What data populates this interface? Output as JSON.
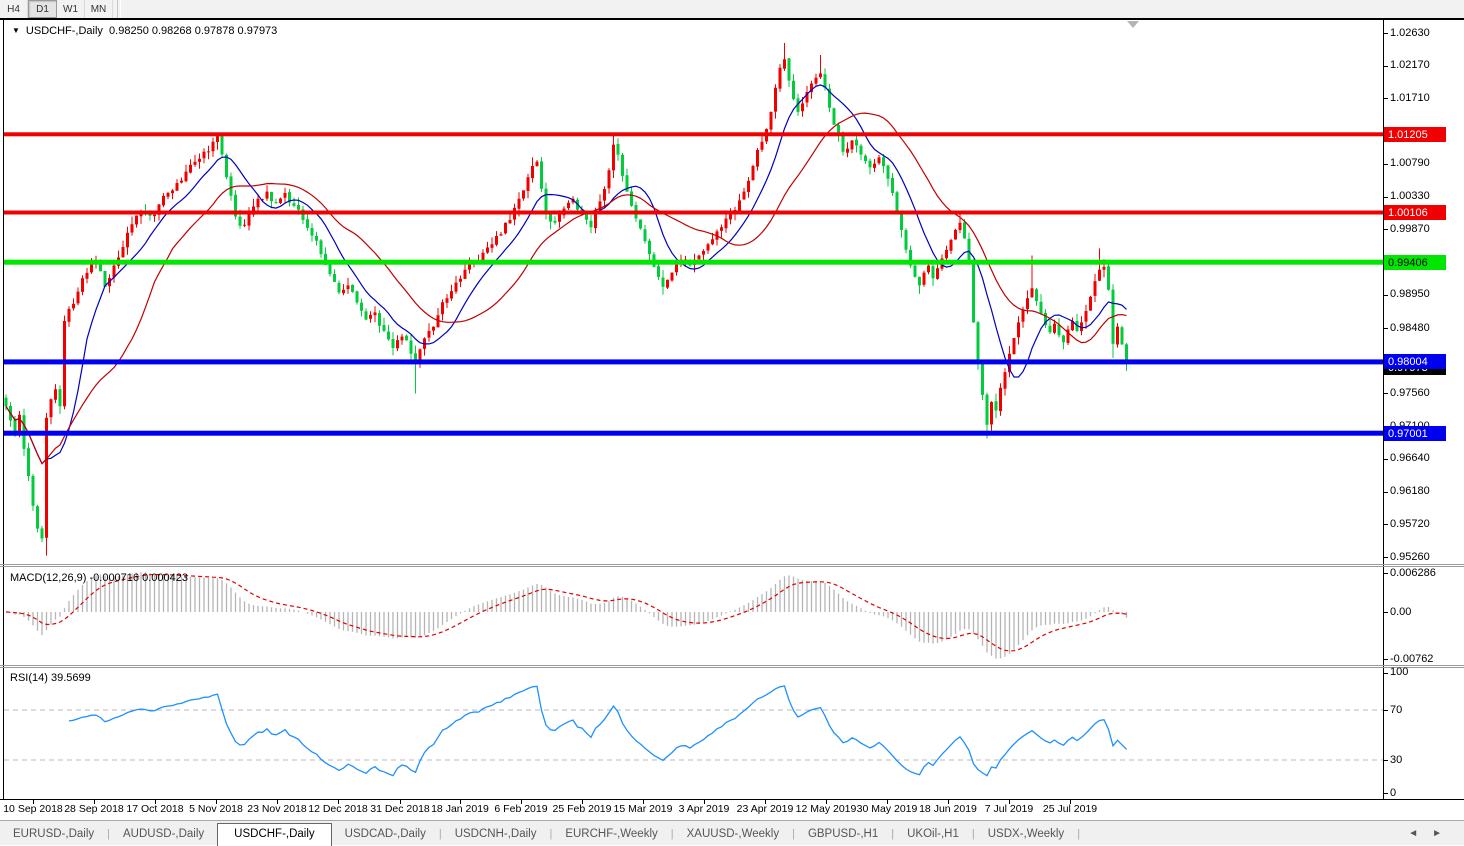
{
  "toolbar": {
    "timeframes": [
      "H4",
      "D1",
      "W1",
      "MN"
    ],
    "active": "D1"
  },
  "title": {
    "collapse_icon": "▼",
    "symbol_label": "USDCHF-,Daily",
    "open": "0.98250",
    "high": "0.98268",
    "low": "0.97878",
    "close": "0.97973"
  },
  "price_axis": {
    "tick_labels": [
      {
        "text": "1.02630",
        "price": 1.0263
      },
      {
        "text": "1.02170",
        "price": 1.0217
      },
      {
        "text": "1.01710",
        "price": 1.0171
      },
      {
        "text": "1.00790",
        "price": 1.0079
      },
      {
        "text": "1.00330",
        "price": 1.0033
      },
      {
        "text": "0.99870",
        "price": 0.9987
      },
      {
        "text": "0.98950",
        "price": 0.9895
      },
      {
        "text": "0.98480",
        "price": 0.9848
      },
      {
        "text": "0.97560",
        "price": 0.9756
      },
      {
        "text": "0.97100",
        "price": 0.971
      },
      {
        "text": "0.96640",
        "price": 0.9664
      },
      {
        "text": "0.96180",
        "price": 0.9618
      },
      {
        "text": "0.95720",
        "price": 0.9572
      },
      {
        "text": "0.95260",
        "price": 0.9526
      }
    ],
    "sr_labels": [
      {
        "text": "1.01205",
        "price": 1.01205,
        "bg": "#f00000",
        "fg": "#ffffff"
      },
      {
        "text": "1.00106",
        "price": 1.00106,
        "bg": "#f00000",
        "fg": "#ffffff"
      },
      {
        "text": "0.99406",
        "price": 0.99406,
        "bg": "#00e600",
        "fg": "#000000"
      },
      {
        "text": "0.98004",
        "price": 0.98004,
        "bg": "#0000f0",
        "fg": "#ffffff"
      },
      {
        "text": "0.97001",
        "price": 0.97001,
        "bg": "#0000f0",
        "fg": "#ffffff"
      }
    ],
    "current_price": {
      "text": "0.97973",
      "price": 0.97973,
      "bg": "#000000",
      "fg": "#ffffff"
    }
  },
  "macd_panel": {
    "label": "MACD(12,26,9)",
    "value": "-0.000716",
    "signal_value": "0.000423",
    "axis": [
      {
        "text": "0.006286",
        "value": 0.006286
      },
      {
        "text": "0.00",
        "value": 0
      },
      {
        "text": "-0.00762",
        "value": -0.00762
      }
    ]
  },
  "rsi_panel": {
    "label": "RSI(14)",
    "value": "39.5699",
    "axis": [
      {
        "text": "100",
        "value": 100
      },
      {
        "text": "70",
        "value": 70
      },
      {
        "text": "30",
        "value": 30
      },
      {
        "text": "0",
        "value": 0
      }
    ],
    "levels": [
      70,
      30
    ]
  },
  "date_axis": {
    "labels": [
      {
        "text": "10 Sep 2018",
        "i": 6
      },
      {
        "text": "28 Sep 2018",
        "i": 19.6
      },
      {
        "text": "17 Oct 2018",
        "i": 33.1
      },
      {
        "text": "5 Nov 2018",
        "i": 46.7
      },
      {
        "text": "23 Nov 2018",
        "i": 60.2
      },
      {
        "text": "12 Dec 2018",
        "i": 73.8
      },
      {
        "text": "31 Dec 2018",
        "i": 87.6
      },
      {
        "text": "18 Jan 2019",
        "i": 100.9
      },
      {
        "text": "6 Feb 2019",
        "i": 114.4
      },
      {
        "text": "25 Feb 2019",
        "i": 128
      },
      {
        "text": "15 Mar 2019",
        "i": 141.6
      },
      {
        "text": "3 Apr 2019",
        "i": 155.1
      },
      {
        "text": "23 Apr 2019",
        "i": 168.7
      },
      {
        "text": "12 May 2019",
        "i": 182.2
      },
      {
        "text": "30 May 2019",
        "i": 195.8
      },
      {
        "text": "18 Jun 2019",
        "i": 209.3
      },
      {
        "text": "7 Jul 2019",
        "i": 222.9
      },
      {
        "text": "25 Jul 2019",
        "i": 236.4
      }
    ]
  },
  "tabs": {
    "items": [
      "EURUSD-,Daily",
      "AUDUSD-,Daily",
      "USDCHF-,Daily",
      "USDCAD-,Daily",
      "USDCNH-,Daily",
      "EURCHF-,Weekly",
      "XAUUSD-,Weekly",
      "GBPUSD-,H1",
      "UKOil-,H1",
      "USDX-,Weekly"
    ],
    "active": "USDCHF-,Daily",
    "nav_prev": "◄",
    "nav_next": "►"
  },
  "chart_data": {
    "type": "candlestick",
    "symbol": "USDCHF",
    "timeframe": "Daily",
    "title": "USDCHF-,Daily",
    "last_ohlc": {
      "open": 0.9825,
      "high": 0.98268,
      "low": 0.97878,
      "close": 0.97973
    },
    "num_candles": 250,
    "y_axis": {
      "min": 0.9526,
      "max": 1.0263,
      "tick_step": 0.0046
    },
    "grid": false,
    "close_anchors": [
      [
        0,
        0.9738
      ],
      [
        1,
        0.9718
      ],
      [
        2,
        0.97
      ],
      [
        3,
        0.9726
      ],
      [
        4,
        0.9678
      ],
      [
        5,
        0.964
      ],
      [
        6,
        0.9598
      ],
      [
        7,
        0.9566
      ],
      [
        8,
        0.9552
      ],
      [
        9,
        0.9722
      ],
      [
        10,
        0.9748
      ],
      [
        11,
        0.9762
      ],
      [
        12,
        0.9738
      ],
      [
        13,
        0.9858
      ],
      [
        14,
        0.9875
      ],
      [
        15,
        0.9882
      ],
      [
        17,
        0.9918
      ],
      [
        19,
        0.994
      ],
      [
        21,
        0.9928
      ],
      [
        22,
        0.9906
      ],
      [
        24,
        0.9936
      ],
      [
        26,
        0.9962
      ],
      [
        28,
        0.9994
      ],
      [
        30,
        1.0012
      ],
      [
        32,
        1.0006
      ],
      [
        34,
        1.0022
      ],
      [
        36,
        1.0038
      ],
      [
        38,
        1.0052
      ],
      [
        40,
        1.0068
      ],
      [
        42,
        1.0082
      ],
      [
        44,
        1.0096
      ],
      [
        46,
        1.011
      ],
      [
        47,
        1.0118
      ],
      [
        48,
        1.0092
      ],
      [
        49,
        1.006
      ],
      [
        50,
        1.0034
      ],
      [
        51,
        1.0005
      ],
      [
        52,
        0.9992
      ],
      [
        54,
        1.0008
      ],
      [
        56,
        1.003
      ],
      [
        58,
        1.004
      ],
      [
        60,
        1.0024
      ],
      [
        62,
        1.0038
      ],
      [
        64,
        1.002
      ],
      [
        66,
        1.0
      ],
      [
        68,
        0.9978
      ],
      [
        70,
        0.9952
      ],
      [
        72,
        0.9924
      ],
      [
        74,
        0.9898
      ],
      [
        76,
        0.9908
      ],
      [
        78,
        0.9884
      ],
      [
        80,
        0.986
      ],
      [
        82,
        0.987
      ],
      [
        84,
        0.9844
      ],
      [
        86,
        0.982
      ],
      [
        88,
        0.9836
      ],
      [
        90,
        0.9812
      ],
      [
        91,
        0.98
      ],
      [
        92,
        0.9818
      ],
      [
        94,
        0.9844
      ],
      [
        96,
        0.9866
      ],
      [
        98,
        0.989
      ],
      [
        100,
        0.9912
      ],
      [
        102,
        0.993
      ],
      [
        104,
        0.9942
      ],
      [
        106,
        0.9954
      ],
      [
        108,
        0.9966
      ],
      [
        110,
        0.998
      ],
      [
        112,
        1.0
      ],
      [
        114,
        1.003
      ],
      [
        116,
        1.006
      ],
      [
        117,
        1.0076
      ],
      [
        118,
        1.0082
      ],
      [
        119,
        1.0044
      ],
      [
        120,
        1.001
      ],
      [
        122,
        0.9996
      ],
      [
        124,
        1.0016
      ],
      [
        126,
        1.003
      ],
      [
        128,
        1.0012
      ],
      [
        130,
        0.999
      ],
      [
        132,
        1.0026
      ],
      [
        134,
        1.007
      ],
      [
        135,
        1.0106
      ],
      [
        136,
        1.0092
      ],
      [
        137,
        1.0062
      ],
      [
        138,
        1.004
      ],
      [
        139,
        1.002
      ],
      [
        140,
        1.0002
      ],
      [
        141,
        0.9988
      ],
      [
        142,
        0.997
      ],
      [
        143,
        0.9952
      ],
      [
        144,
        0.9934
      ],
      [
        145,
        0.992
      ],
      [
        146,
        0.9906
      ],
      [
        147,
        0.9916
      ],
      [
        148,
        0.9926
      ],
      [
        150,
        0.9944
      ],
      [
        152,
        0.9936
      ],
      [
        154,
        0.995
      ],
      [
        156,
        0.9966
      ],
      [
        158,
        0.9984
      ],
      [
        160,
        1.0002
      ],
      [
        162,
        1.0014
      ],
      [
        164,
        1.004
      ],
      [
        166,
        1.0076
      ],
      [
        168,
        1.011
      ],
      [
        169,
        1.0128
      ],
      [
        170,
        1.0152
      ],
      [
        171,
        1.0186
      ],
      [
        172,
        1.0214
      ],
      [
        173,
        1.0226
      ],
      [
        174,
        1.0196
      ],
      [
        175,
        1.017
      ],
      [
        176,
        1.0152
      ],
      [
        177,
        1.0164
      ],
      [
        178,
        1.018
      ],
      [
        179,
        1.0192
      ],
      [
        180,
        1.02
      ],
      [
        181,
        1.0206
      ],
      [
        182,
        1.0186
      ],
      [
        183,
        1.0158
      ],
      [
        184,
        1.0134
      ],
      [
        185,
        1.0118
      ],
      [
        186,
        1.0096
      ],
      [
        188,
        1.0112
      ],
      [
        190,
        1.0092
      ],
      [
        192,
        1.0074
      ],
      [
        194,
        1.0088
      ],
      [
        196,
        1.0058
      ],
      [
        197,
        1.0038
      ],
      [
        198,
        1.0012
      ],
      [
        199,
        0.9986
      ],
      [
        200,
        0.9958
      ],
      [
        201,
        0.9936
      ],
      [
        202,
        0.992
      ],
      [
        203,
        0.9908
      ],
      [
        204,
        0.9926
      ],
      [
        205,
        0.9936
      ],
      [
        206,
        0.9918
      ],
      [
        207,
        0.9932
      ],
      [
        208,
        0.9946
      ],
      [
        209,
        0.9958
      ],
      [
        210,
        0.9972
      ],
      [
        211,
        0.9986
      ],
      [
        212,
        0.9996
      ],
      [
        213,
        0.9974
      ],
      [
        214,
        0.9942
      ],
      [
        215,
        0.9856
      ],
      [
        216,
        0.9798
      ],
      [
        217,
        0.9754
      ],
      [
        218,
        0.9712
      ],
      [
        219,
        0.9744
      ],
      [
        220,
        0.9732
      ],
      [
        221,
        0.9764
      ],
      [
        222,
        0.9786
      ],
      [
        223,
        0.9812
      ],
      [
        224,
        0.9834
      ],
      [
        225,
        0.9856
      ],
      [
        226,
        0.9874
      ],
      [
        227,
        0.989
      ],
      [
        228,
        0.9904
      ],
      [
        229,
        0.9886
      ],
      [
        230,
        0.9868
      ],
      [
        231,
        0.9852
      ],
      [
        232,
        0.9842
      ],
      [
        233,
        0.9854
      ],
      [
        234,
        0.9838
      ],
      [
        235,
        0.9828
      ],
      [
        236,
        0.9846
      ],
      [
        237,
        0.9858
      ],
      [
        238,
        0.9844
      ],
      [
        239,
        0.9856
      ],
      [
        240,
        0.9872
      ],
      [
        241,
        0.9892
      ],
      [
        242,
        0.9914
      ],
      [
        243,
        0.993
      ],
      [
        244,
        0.9934
      ],
      [
        245,
        0.9902
      ],
      [
        246,
        0.9826
      ],
      [
        247,
        0.985
      ],
      [
        248,
        0.9825
      ],
      [
        249,
        0.97973
      ]
    ],
    "wick_overrides": {
      "9": {
        "low": 0.9528
      },
      "47": {
        "high": 1.0122
      },
      "91": {
        "low": 0.9756
      },
      "117": {
        "high": 1.0088
      },
      "135": {
        "high": 1.0122
      },
      "146": {
        "low": 0.9895
      },
      "173": {
        "high": 1.0249
      },
      "181": {
        "high": 1.0232
      },
      "203": {
        "low": 0.9896
      },
      "212": {
        "high": 1.0011
      },
      "218": {
        "low": 0.9693
      },
      "228": {
        "high": 0.995
      },
      "243": {
        "high": 0.996
      },
      "246": {
        "low": 0.9806
      },
      "249": {
        "high": 0.98268,
        "low": 0.97878
      }
    },
    "sr_lines": [
      {
        "price": 1.01205,
        "color": "#f00000",
        "width": 4
      },
      {
        "price": 1.00106,
        "color": "#f00000",
        "width": 4
      },
      {
        "price": 0.99406,
        "color": "#00e600",
        "width": 5
      },
      {
        "price": 0.98004,
        "color": "#0000f0",
        "width": 5
      },
      {
        "price": 0.97001,
        "color": "#0000f0",
        "width": 5
      }
    ],
    "moving_averages": [
      {
        "period": 10,
        "color": "#0000c0"
      },
      {
        "period": 25,
        "color": "#c00000"
      }
    ],
    "indicators": {
      "macd": {
        "fast": 12,
        "slow": 26,
        "signal": 9,
        "current": -0.000716,
        "current_signal": 0.000423,
        "hist_color": "#b5b5b5",
        "signal_color": "#e00000",
        "axis_max": 0.006286,
        "axis_min": -0.00762
      },
      "rsi": {
        "period": 14,
        "current": 39.5699,
        "levels": [
          70,
          30
        ],
        "color": "#1e90ff",
        "level_color": "#b8b8b8"
      }
    },
    "colors": {
      "up_candle": "#f20000",
      "down_candle": "#00cc3c",
      "background": "#ffffff",
      "foreground": "#000000"
    }
  }
}
